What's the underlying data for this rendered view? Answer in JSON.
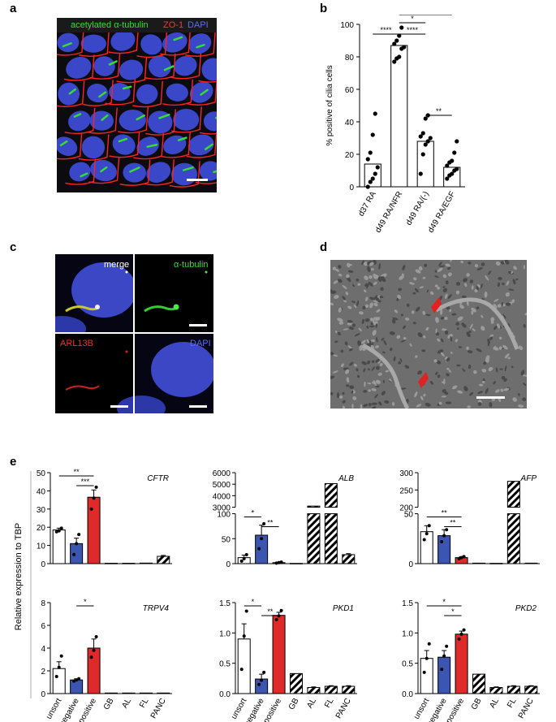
{
  "panel_letters": {
    "a": "a",
    "b": "b",
    "c": "c",
    "d": "d",
    "e": "e"
  },
  "panel_a": {
    "label_green": "acetylated α-tubulin",
    "label_red": "ZO-1",
    "label_blue": "DAPI",
    "colors": {
      "green": "#33dd33",
      "red": "#ff2222",
      "blue": "#3a47c8"
    }
  },
  "panel_c": {
    "merge": "merge",
    "tubulin": "α-tubulin",
    "arl13b": "ARL13B",
    "dapi": "DAPI"
  },
  "colors": {
    "unsort": "#ffffff",
    "negative": "#3a56b0",
    "positive": "#e02a2a",
    "hatch": "#000000"
  },
  "chart_data": [
    {
      "id": "b",
      "type": "bar",
      "ylabel": "% positive of cilia cells",
      "xlabel": "",
      "categories": [
        "d37 RA",
        "d49 RA/NFR",
        "d49 RA/(-)",
        "d49 RA/EGF"
      ],
      "values": [
        14,
        87,
        28,
        12
      ],
      "ylim": [
        0,
        100
      ],
      "yticks": [
        0,
        20,
        40,
        60,
        80,
        100
      ],
      "points": [
        [
          0,
          3,
          5,
          8,
          12,
          17,
          21,
          32,
          45
        ],
        [
          77,
          79,
          80,
          85,
          86,
          88,
          90,
          93,
          98
        ],
        [
          8,
          20,
          26,
          28,
          30,
          31,
          33,
          42,
          44
        ],
        [
          5,
          7,
          8,
          10,
          11,
          13,
          15,
          16,
          21,
          28
        ]
      ],
      "significance": [
        {
          "from": 0,
          "to": 1,
          "label": "****"
        },
        {
          "from": 1,
          "to": 3,
          "label": "****"
        },
        {
          "from": 1,
          "to": 2,
          "label": "*"
        },
        {
          "from": 1,
          "to": 2,
          "label": "****"
        },
        {
          "from": 2,
          "to": 3,
          "label": "**"
        }
      ]
    },
    {
      "id": "e",
      "type": "bar",
      "ylabel": "Relative expression to TBP",
      "categories": [
        "unsort",
        "negative",
        "positive",
        "GB",
        "AL",
        "FL",
        "PANC"
      ],
      "subcharts": [
        {
          "gene": "CFTR",
          "values": [
            18.5,
            11,
            36.5,
            0.2,
            0.2,
            0.3,
            4
          ],
          "errors": [
            1,
            3,
            4,
            0,
            0,
            0,
            0.5
          ],
          "points": [
            [
              17.5,
              18,
              19.5
            ],
            [
              5,
              11,
              16
            ],
            [
              30,
              36,
              42
            ]
          ],
          "ylim": [
            0,
            50
          ],
          "yticks": [
            0,
            10,
            20,
            30,
            40,
            50
          ],
          "significance": [
            {
              "from": 0,
              "to": 2,
              "label": "**"
            },
            {
              "from": 1,
              "to": 2,
              "label": "***"
            }
          ]
        },
        {
          "gene": "ALB",
          "broken_axis": true,
          "lower_ylim": [
            0,
            100
          ],
          "upper_ylim": [
            3000,
            6000
          ],
          "lower_yticks": [
            0,
            50,
            100
          ],
          "upper_yticks": [
            3000,
            4000,
            5000,
            6000
          ],
          "values": [
            12,
            57,
            2,
            0.5,
            3100,
            5050,
            18
          ],
          "errors": [
            5,
            20,
            1,
            0,
            0,
            0,
            2
          ],
          "points": [
            [
              5,
              10,
              18
            ],
            [
              30,
              50,
              80
            ],
            [
              1,
              2,
              3
            ]
          ],
          "significance": [
            {
              "from": 0,
              "to": 1,
              "label": "*"
            },
            {
              "from": 1,
              "to": 2,
              "label": "**"
            }
          ]
        },
        {
          "gene": "AFP",
          "broken_axis": true,
          "lower_ylim": [
            0,
            50
          ],
          "upper_ylim": [
            200,
            300
          ],
          "lower_yticks": [
            0,
            50
          ],
          "upper_yticks": [
            200,
            250,
            300
          ],
          "values": [
            32,
            28,
            6,
            0.5,
            0.3,
            275,
            0.5
          ],
          "errors": [
            6,
            6,
            1,
            0,
            0,
            0,
            0
          ],
          "points": [
            [
              24,
              30,
              38
            ],
            [
              22,
              28,
              34
            ],
            [
              5,
              6,
              7
            ]
          ],
          "significance": [
            {
              "from": 0,
              "to": 2,
              "label": "**"
            },
            {
              "from": 1,
              "to": 2,
              "label": "**"
            }
          ]
        },
        {
          "gene": "TRPV4",
          "values": [
            2.2,
            1.2,
            4.0,
            0.05,
            0.05,
            0.05,
            0.05
          ],
          "errors": [
            0.6,
            0.1,
            0.8,
            0,
            0,
            0,
            0
          ],
          "points": [
            [
              1.5,
              2.3,
              3.3
            ],
            [
              1.1,
              1.2,
              1.3
            ],
            [
              3.2,
              3.8,
              5.0
            ]
          ],
          "ylim": [
            0,
            8
          ],
          "yticks": [
            0,
            2,
            4,
            6,
            8
          ],
          "significance": [
            {
              "from": 1,
              "to": 2,
              "label": "*"
            }
          ]
        },
        {
          "gene": "PKD1",
          "values": [
            0.9,
            0.24,
            1.29,
            0.33,
            0.1,
            0.12,
            0.12
          ],
          "errors": [
            0.25,
            0.08,
            0.05,
            0,
            0.01,
            0.01,
            0.01
          ],
          "points": [
            [
              0.4,
              0.95,
              1.36
            ],
            [
              0.15,
              0.22,
              0.35
            ],
            [
              1.22,
              1.28,
              1.37
            ]
          ],
          "ylim": [
            0,
            1.5
          ],
          "yticks": [
            0,
            0.5,
            1.0,
            1.5
          ],
          "ytick_labels": [
            "0.0",
            "0.5",
            "1.0",
            "1.5"
          ],
          "significance": [
            {
              "from": 0,
              "to": 1,
              "label": "*"
            },
            {
              "from": 1,
              "to": 2,
              "label": "**"
            }
          ]
        },
        {
          "gene": "PKD2",
          "values": [
            0.58,
            0.6,
            0.98,
            0.32,
            0.1,
            0.12,
            0.12
          ],
          "errors": [
            0.13,
            0.11,
            0.05,
            0,
            0.01,
            0.01,
            0.01
          ],
          "points": [
            [
              0.35,
              0.58,
              0.82
            ],
            [
              0.4,
              0.62,
              0.78
            ],
            [
              0.9,
              0.98,
              1.05
            ]
          ],
          "ylim": [
            0,
            1.5
          ],
          "yticks": [
            0,
            0.5,
            1.0,
            1.5
          ],
          "ytick_labels": [
            "0.0",
            "0.5",
            "1.0",
            "1.5"
          ],
          "significance": [
            {
              "from": 0,
              "to": 2,
              "label": "*"
            },
            {
              "from": 1,
              "to": 2,
              "label": "*"
            }
          ]
        }
      ]
    }
  ]
}
